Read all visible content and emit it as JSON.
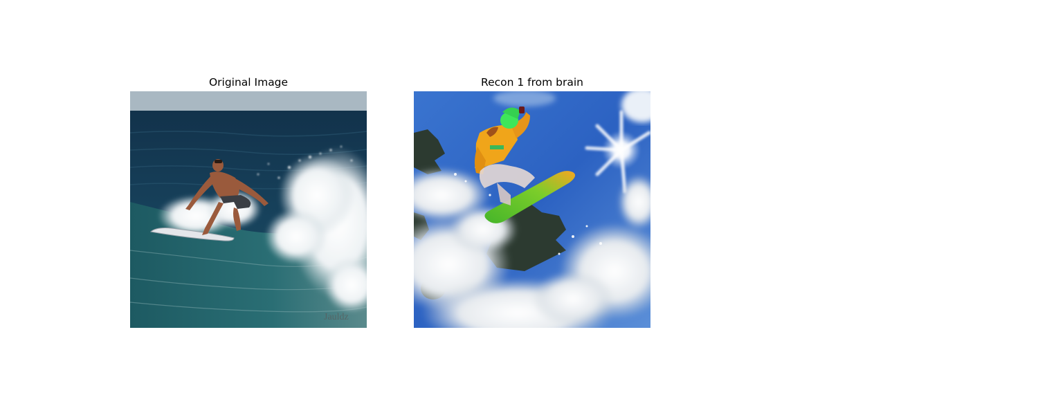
{
  "panels": [
    {
      "title": "Original Image",
      "scene": "surfer riding a breaking ocean wave",
      "watermark": "Jauldz"
    },
    {
      "title": "Recon 1 from brain",
      "scene": "snowboarder jumping over snowy trees under a blue sky"
    }
  ],
  "colors": {
    "sea_dark": "#123a55",
    "sea_teal": "#1e5a66",
    "sky_haze": "#a9b8c2",
    "foam": "#f1f4f6",
    "sky_blue": "#3f7fd4",
    "snow": "#eef1f4",
    "jacket": "#f0a51a",
    "beanie": "#3ee65a",
    "board_green": "#4ec02c",
    "board_orange": "#f5b02a"
  }
}
